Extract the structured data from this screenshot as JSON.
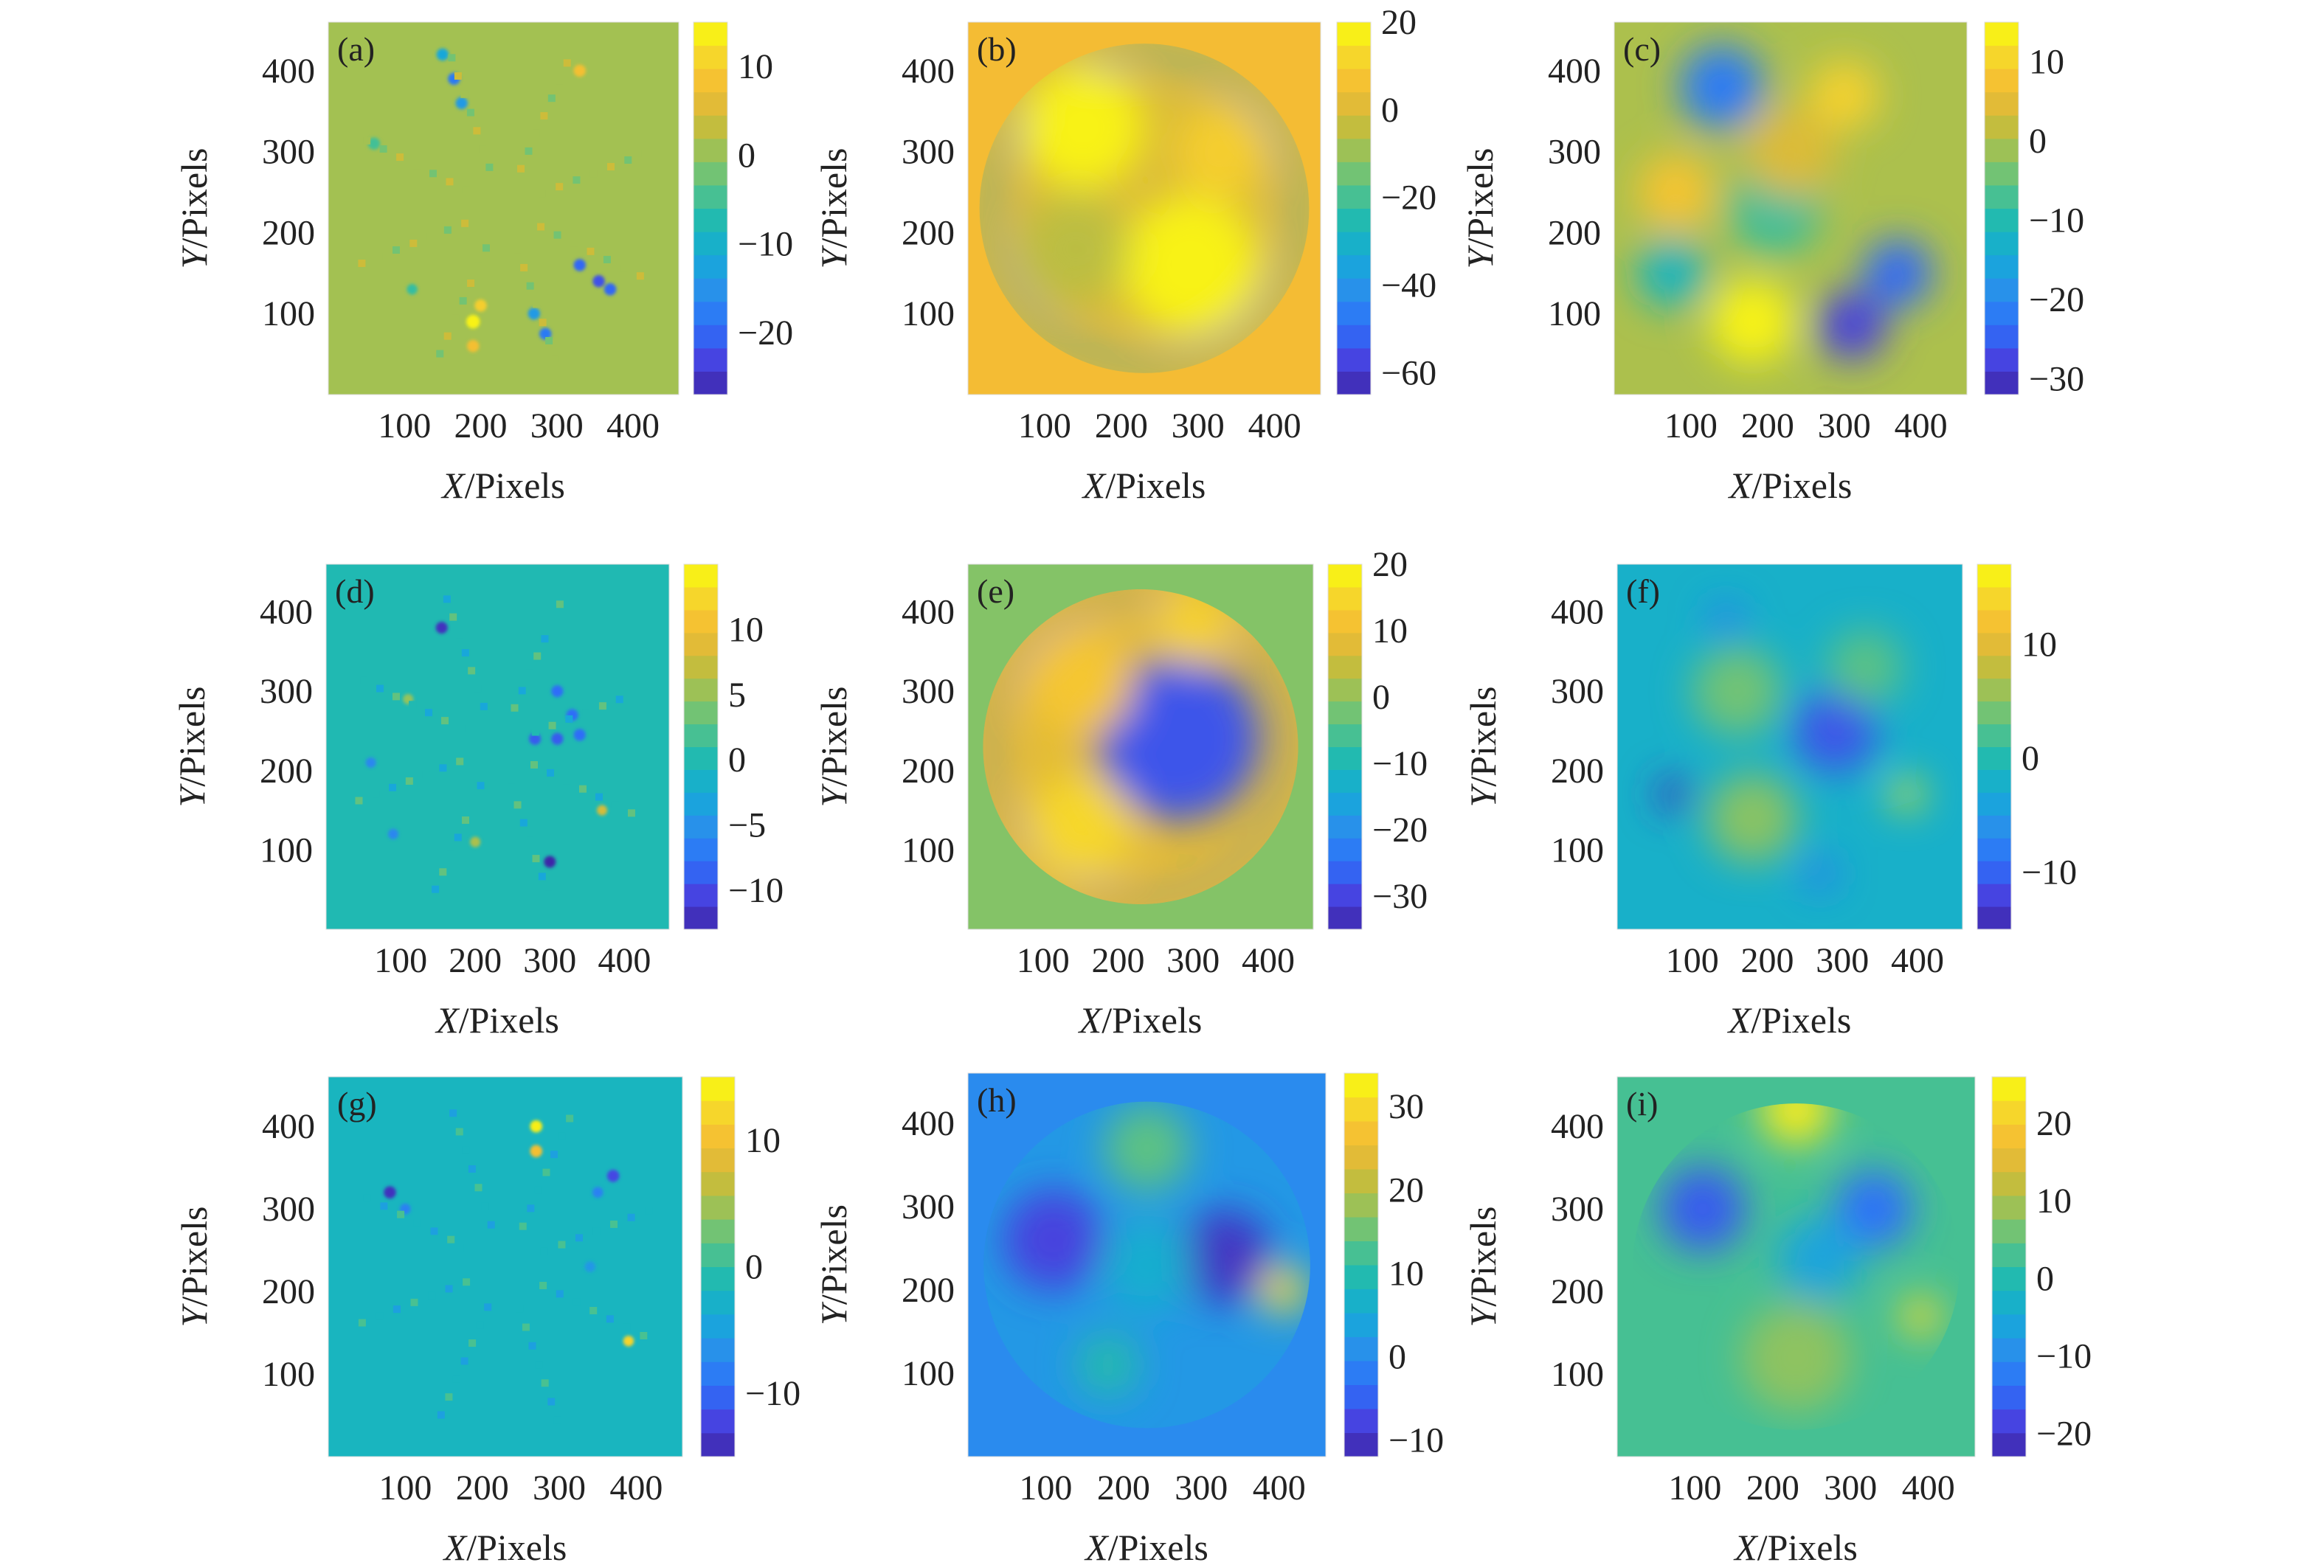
{
  "figure": {
    "description_free": true,
    "colormap": [
      "#3e26a8",
      "#4743e0",
      "#2d6ff9",
      "#2a8fec",
      "#17a9d9",
      "#1ab8b7",
      "#4fc28c",
      "#91c35e",
      "#c8bc3b",
      "#f4ba35",
      "#f6d72b",
      "#f9fb0e"
    ]
  },
  "chart_data": [
    {
      "panel": "(a)",
      "type": "heatmap",
      "xlabel_var": "X",
      "xlabel_unit": "/Pixels",
      "ylabel_var": "Y",
      "ylabel_unit": "/Pixels",
      "x_ticks": [
        100,
        200,
        300,
        400
      ],
      "y_ticks": [
        100,
        200,
        300,
        400
      ],
      "xlim": [
        0,
        460
      ],
      "ylim": [
        0,
        460
      ],
      "colorbar_ticks": [
        10,
        0,
        -10,
        -20
      ],
      "clim": [
        -27,
        15
      ],
      "background": 1,
      "pattern": "rays",
      "blobs": [
        {
          "x": 150,
          "y": 420,
          "v": -12,
          "r": 8
        },
        {
          "x": 165,
          "y": 390,
          "v": -18,
          "r": 8
        },
        {
          "x": 175,
          "y": 360,
          "v": -14,
          "r": 8
        },
        {
          "x": 330,
          "y": 400,
          "v": 8,
          "r": 8
        },
        {
          "x": 60,
          "y": 310,
          "v": -5,
          "r": 8
        },
        {
          "x": 330,
          "y": 160,
          "v": -20,
          "r": 8
        },
        {
          "x": 355,
          "y": 140,
          "v": -22,
          "r": 8
        },
        {
          "x": 190,
          "y": 90,
          "v": 14,
          "r": 9
        },
        {
          "x": 190,
          "y": 60,
          "v": 8,
          "r": 8
        },
        {
          "x": 270,
          "y": 100,
          "v": -14,
          "r": 8
        },
        {
          "x": 285,
          "y": 75,
          "v": -18,
          "r": 8
        },
        {
          "x": 200,
          "y": 110,
          "v": 10,
          "r": 8
        },
        {
          "x": 110,
          "y": 130,
          "v": -6,
          "r": 7
        },
        {
          "x": 370,
          "y": 130,
          "v": -20,
          "r": 8
        }
      ]
    },
    {
      "panel": "(b)",
      "type": "heatmap",
      "xlabel_var": "X",
      "xlabel_unit": "/Pixels",
      "ylabel_var": "Y",
      "ylabel_unit": "/Pixels",
      "x_ticks": [
        100,
        200,
        300,
        400
      ],
      "y_ticks": [
        100,
        200,
        300,
        400
      ],
      "xlim": [
        0,
        460
      ],
      "ylim": [
        0,
        460
      ],
      "colorbar_ticks": [
        20,
        0,
        -20,
        -40,
        -60
      ],
      "clim": [
        -65,
        20
      ],
      "background": 5,
      "circle": {
        "cx": 230,
        "cy": 230,
        "r": 215
      },
      "circle_base": 0,
      "rim": {
        "v": -40,
        "width": 30
      },
      "blobs": [
        {
          "x": 150,
          "y": 330,
          "v": 18,
          "r": 80
        },
        {
          "x": 290,
          "y": 160,
          "v": 18,
          "r": 90
        },
        {
          "x": 330,
          "y": 300,
          "v": 10,
          "r": 60
        },
        {
          "x": 140,
          "y": 180,
          "v": -5,
          "r": 70
        }
      ]
    },
    {
      "panel": "(c)",
      "type": "heatmap",
      "xlabel_var": "X",
      "xlabel_unit": "/Pixels",
      "ylabel_var": "Y",
      "ylabel_unit": "/Pixels",
      "x_ticks": [
        100,
        200,
        300,
        400
      ],
      "y_ticks": [
        100,
        200,
        300,
        400
      ],
      "xlim": [
        0,
        460
      ],
      "ylim": [
        0,
        460
      ],
      "colorbar_ticks": [
        10,
        0,
        -10,
        -20,
        -30
      ],
      "clim": [
        -32,
        15
      ],
      "background": 0,
      "blobs": [
        {
          "x": 140,
          "y": 380,
          "v": -22,
          "r": 55
        },
        {
          "x": 300,
          "y": 370,
          "v": 10,
          "r": 45
        },
        {
          "x": 80,
          "y": 250,
          "v": 8,
          "r": 50
        },
        {
          "x": 210,
          "y": 230,
          "v": -8,
          "r": 60
        },
        {
          "x": 75,
          "y": 150,
          "v": -12,
          "r": 45
        },
        {
          "x": 180,
          "y": 90,
          "v": 14,
          "r": 55
        },
        {
          "x": 310,
          "y": 85,
          "v": -28,
          "r": 45
        },
        {
          "x": 370,
          "y": 150,
          "v": -24,
          "r": 45
        },
        {
          "x": 230,
          "y": 300,
          "v": 4,
          "r": 60
        }
      ]
    },
    {
      "panel": "(d)",
      "type": "heatmap",
      "xlabel_var": "X",
      "xlabel_unit": "/Pixels",
      "ylabel_var": "Y",
      "ylabel_unit": "/Pixels",
      "x_ticks": [
        100,
        200,
        300,
        400
      ],
      "y_ticks": [
        100,
        200,
        300,
        400
      ],
      "xlim": [
        0,
        460
      ],
      "ylim": [
        0,
        460
      ],
      "colorbar_ticks": [
        10,
        5,
        0,
        -5,
        -10
      ],
      "clim": [
        -13,
        15
      ],
      "background": 0,
      "pattern": "rays",
      "blobs": [
        {
          "x": 155,
          "y": 380,
          "v": -12,
          "r": 8
        },
        {
          "x": 310,
          "y": 300,
          "v": -8,
          "r": 8
        },
        {
          "x": 330,
          "y": 270,
          "v": -8,
          "r": 8
        },
        {
          "x": 280,
          "y": 240,
          "v": -9,
          "r": 8
        },
        {
          "x": 310,
          "y": 240,
          "v": -9,
          "r": 8
        },
        {
          "x": 340,
          "y": 245,
          "v": -8,
          "r": 8
        },
        {
          "x": 60,
          "y": 210,
          "v": -6,
          "r": 7
        },
        {
          "x": 300,
          "y": 85,
          "v": -14,
          "r": 8
        },
        {
          "x": 370,
          "y": 150,
          "v": 8,
          "r": 7
        },
        {
          "x": 90,
          "y": 120,
          "v": -6,
          "r": 7
        },
        {
          "x": 200,
          "y": 110,
          "v": 6,
          "r": 7
        },
        {
          "x": 110,
          "y": 290,
          "v": 5,
          "r": 7
        }
      ]
    },
    {
      "panel": "(e)",
      "type": "heatmap",
      "xlabel_var": "X",
      "xlabel_unit": "/Pixels",
      "ylabel_var": "Y",
      "ylabel_unit": "/Pixels",
      "x_ticks": [
        100,
        200,
        300,
        400
      ],
      "y_ticks": [
        100,
        200,
        300,
        400
      ],
      "xlim": [
        0,
        460
      ],
      "ylim": [
        0,
        460
      ],
      "colorbar_ticks": [
        20,
        10,
        0,
        -10,
        -20,
        -30
      ],
      "clim": [
        -35,
        20
      ],
      "background": -1,
      "circle": {
        "cx": 230,
        "cy": 230,
        "r": 210
      },
      "circle_base": 8,
      "rim": {
        "v": -25,
        "width": 22
      },
      "blobs": [
        {
          "x": 280,
          "y": 240,
          "v": -28,
          "r": 110
        },
        {
          "x": 150,
          "y": 310,
          "v": 12,
          "r": 70
        },
        {
          "x": 150,
          "y": 130,
          "v": 15,
          "r": 70
        },
        {
          "x": 300,
          "y": 380,
          "v": 14,
          "r": 50
        }
      ]
    },
    {
      "panel": "(f)",
      "type": "heatmap",
      "xlabel_var": "X",
      "xlabel_unit": "/Pixels",
      "ylabel_var": "Y",
      "ylabel_unit": "/Pixels",
      "x_ticks": [
        100,
        200,
        300,
        400
      ],
      "y_ticks": [
        100,
        200,
        300,
        400
      ],
      "xlim": [
        0,
        460
      ],
      "ylim": [
        0,
        460
      ],
      "colorbar_ticks": [
        10,
        0,
        -10
      ],
      "clim": [
        -15,
        17
      ],
      "background": -2,
      "blobs": [
        {
          "x": 290,
          "y": 250,
          "v": -11,
          "r": 55
        },
        {
          "x": 75,
          "y": 170,
          "v": -14,
          "r": 22
        },
        {
          "x": 145,
          "y": 390,
          "v": -8,
          "r": 22
        },
        {
          "x": 270,
          "y": 70,
          "v": -8,
          "r": 22
        },
        {
          "x": 385,
          "y": 170,
          "v": 16,
          "r": 20
        },
        {
          "x": 180,
          "y": 140,
          "v": 5,
          "r": 60
        },
        {
          "x": 160,
          "y": 300,
          "v": 4,
          "r": 60
        },
        {
          "x": 330,
          "y": 330,
          "v": 3,
          "r": 50
        }
      ]
    },
    {
      "panel": "(g)",
      "type": "heatmap",
      "xlabel_var": "X",
      "xlabel_unit": "/Pixels",
      "ylabel_var": "Y",
      "ylabel_unit": "/Pixels",
      "x_ticks": [
        100,
        200,
        300,
        400
      ],
      "y_ticks": [
        100,
        200,
        300,
        400
      ],
      "xlim": [
        0,
        460
      ],
      "ylim": [
        0,
        460
      ],
      "colorbar_ticks": [
        10,
        0,
        -10
      ],
      "clim": [
        -15,
        15
      ],
      "background": -2,
      "pattern": "rays",
      "blobs": [
        {
          "x": 270,
          "y": 400,
          "v": 14,
          "r": 8
        },
        {
          "x": 270,
          "y": 370,
          "v": 10,
          "r": 8
        },
        {
          "x": 80,
          "y": 320,
          "v": -14,
          "r": 8
        },
        {
          "x": 100,
          "y": 300,
          "v": -8,
          "r": 7
        },
        {
          "x": 370,
          "y": 340,
          "v": -12,
          "r": 8
        },
        {
          "x": 350,
          "y": 320,
          "v": -8,
          "r": 7
        },
        {
          "x": 390,
          "y": 140,
          "v": 12,
          "r": 7
        },
        {
          "x": 340,
          "y": 230,
          "v": -6,
          "r": 7
        }
      ]
    },
    {
      "panel": "(h)",
      "type": "heatmap",
      "xlabel_var": "X",
      "xlabel_unit": "/Pixels",
      "ylabel_var": "Y",
      "ylabel_unit": "/Pixels",
      "x_ticks": [
        100,
        200,
        300,
        400
      ],
      "y_ticks": [
        100,
        200,
        300,
        400
      ],
      "xlim": [
        0,
        460
      ],
      "ylim": [
        0,
        460
      ],
      "colorbar_ticks": [
        30,
        20,
        10,
        0,
        -10
      ],
      "clim": [
        -12,
        34
      ],
      "background": 0,
      "circle": {
        "cx": 230,
        "cy": 230,
        "r": 210
      },
      "circle_base": 2,
      "blobs": [
        {
          "x": 110,
          "y": 260,
          "v": -8,
          "r": 65
        },
        {
          "x": 330,
          "y": 240,
          "v": -10,
          "r": 60
        },
        {
          "x": 230,
          "y": 370,
          "v": 14,
          "r": 55
        },
        {
          "x": 180,
          "y": 110,
          "v": 10,
          "r": 40
        },
        {
          "x": 405,
          "y": 200,
          "v": 30,
          "r": 30
        },
        {
          "x": 230,
          "y": 230,
          "v": 6,
          "r": 60
        }
      ]
    },
    {
      "panel": "(i)",
      "type": "heatmap",
      "xlabel_var": "X",
      "xlabel_unit": "/Pixels",
      "ylabel_var": "Y",
      "ylabel_unit": "/Pixels",
      "x_ticks": [
        100,
        200,
        300,
        400
      ],
      "y_ticks": [
        100,
        200,
        300,
        400
      ],
      "xlim": [
        0,
        460
      ],
      "ylim": [
        0,
        460
      ],
      "colorbar_ticks": [
        20,
        10,
        0,
        -10,
        -20
      ],
      "clim": [
        -23,
        26
      ],
      "background": 3,
      "circle": {
        "cx": 230,
        "cy": 230,
        "r": 210
      },
      "circle_base": 3,
      "blobs": [
        {
          "x": 110,
          "y": 300,
          "v": -16,
          "r": 55
        },
        {
          "x": 330,
          "y": 300,
          "v": -14,
          "r": 50
        },
        {
          "x": 230,
          "y": 420,
          "v": 24,
          "r": 45
        },
        {
          "x": 390,
          "y": 170,
          "v": 22,
          "r": 25
        },
        {
          "x": 230,
          "y": 120,
          "v": 8,
          "r": 70
        },
        {
          "x": 260,
          "y": 240,
          "v": -6,
          "r": 55
        }
      ]
    }
  ]
}
